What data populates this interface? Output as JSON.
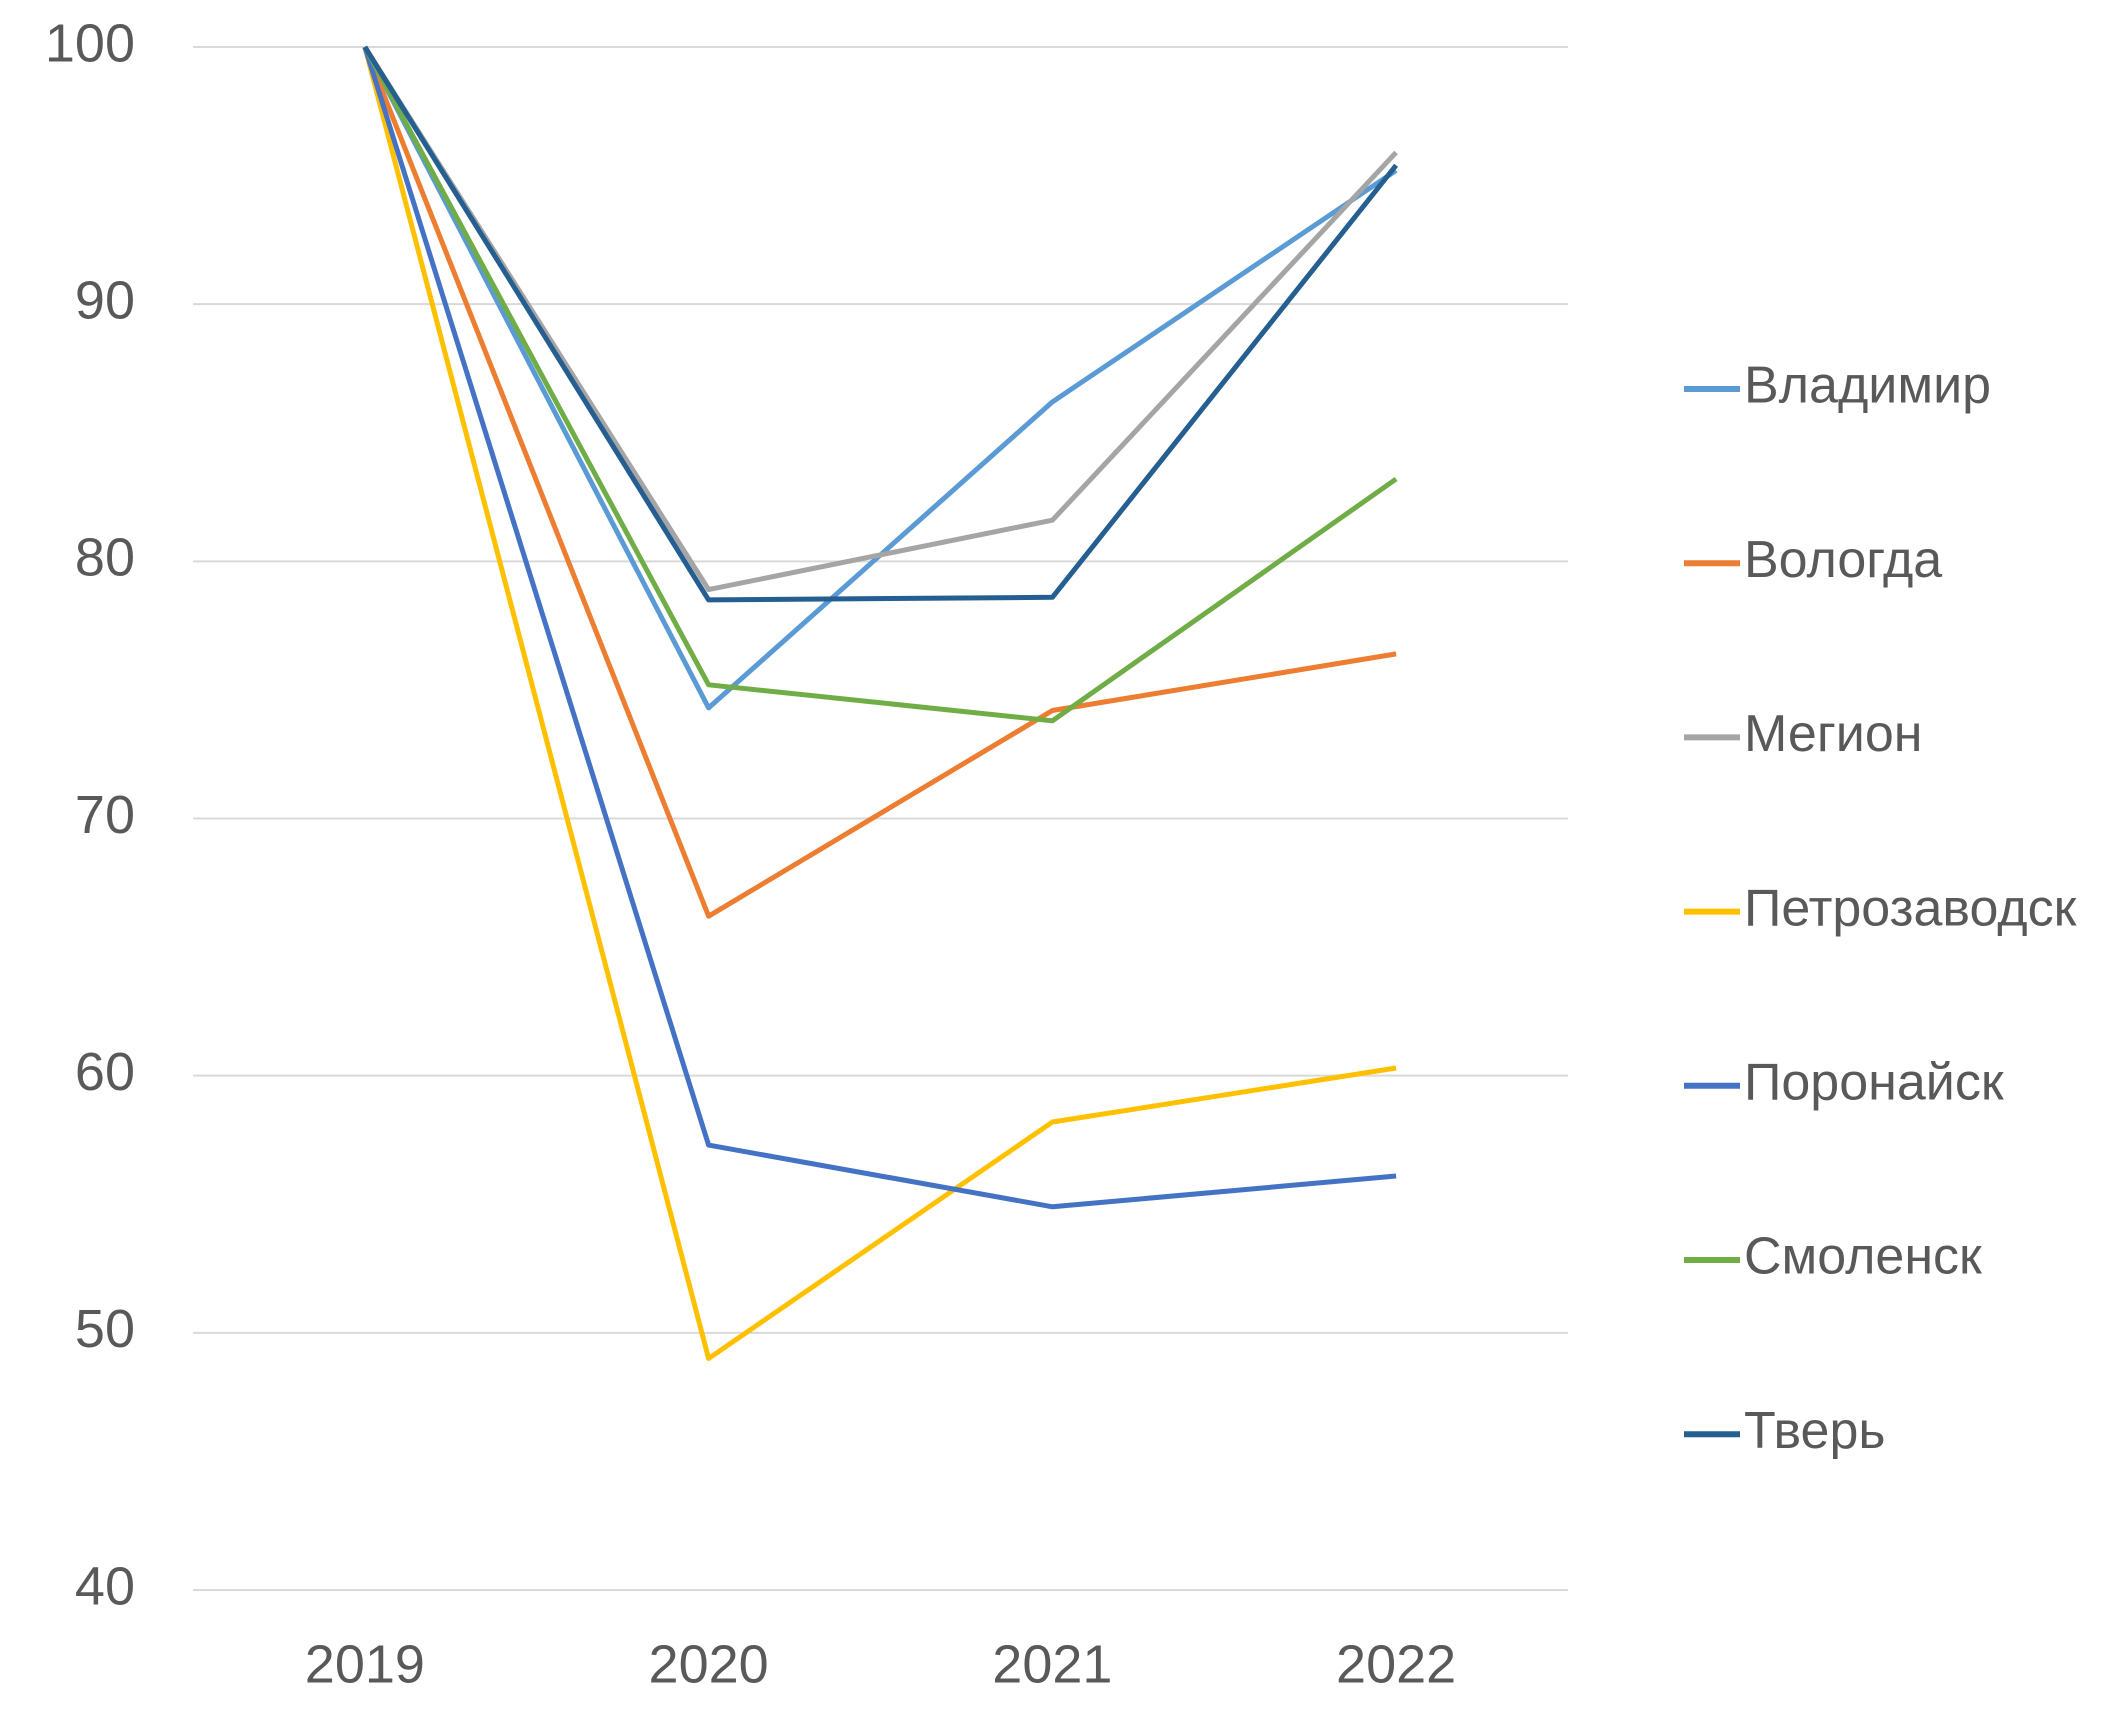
{
  "chart_data": {
    "type": "line",
    "categories": [
      "2019",
      "2020",
      "2021",
      "2022"
    ],
    "series": [
      {
        "name": "Владимир",
        "color": "#5b9bd5",
        "values": [
          100,
          74.3,
          86.2,
          95.2
        ]
      },
      {
        "name": "Вологда",
        "color": "#ed7d31",
        "values": [
          100,
          66.2,
          74.2,
          76.4
        ]
      },
      {
        "name": "Мегион",
        "color": "#a5a5a5",
        "values": [
          100,
          78.9,
          81.6,
          95.9
        ]
      },
      {
        "name": "Петрозаводск",
        "color": "#ffc000",
        "values": [
          100,
          49.0,
          58.2,
          60.3
        ]
      },
      {
        "name": "Поронайск",
        "color": "#4472c4",
        "values": [
          100,
          57.3,
          54.9,
          56.1
        ]
      },
      {
        "name": "Смоленск",
        "color": "#70ad47",
        "values": [
          100,
          75.2,
          73.8,
          83.2
        ]
      },
      {
        "name": "Тверь",
        "color": "#255e91",
        "values": [
          100,
          78.5,
          78.6,
          95.4
        ]
      }
    ],
    "ylim": [
      40,
      100
    ],
    "yticks": [
      40,
      50,
      60,
      70,
      80,
      90,
      100
    ],
    "grid": true,
    "legend": "right"
  }
}
